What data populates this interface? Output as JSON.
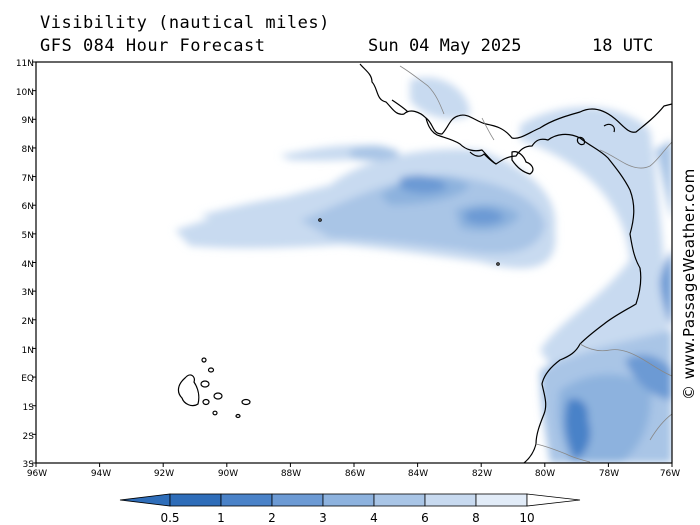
{
  "header": {
    "title": "Visibility (nautical miles)",
    "subtitle": "GFS 084 Hour Forecast",
    "date": "Sun 04 May 2025",
    "time": "18 UTC"
  },
  "credit": "© www.PassageWeather.com",
  "axes": {
    "lat_labels": [
      "11N",
      "10N",
      "9N",
      "8N",
      "7N",
      "6N",
      "5N",
      "4N",
      "3N",
      "2N",
      "1N",
      "EQ",
      "1S",
      "2S",
      "3S"
    ],
    "lon_labels": [
      "96W",
      "94W",
      "92W",
      "90W",
      "88W",
      "86W",
      "84W",
      "82W",
      "80W",
      "78W",
      "76W"
    ],
    "lon_range": [
      -96,
      -76
    ],
    "lat_range": [
      -3,
      11
    ]
  },
  "legend": {
    "labels": [
      "0.5",
      "1",
      "2",
      "3",
      "4",
      "6",
      "8",
      "10"
    ],
    "colors": [
      "#2e6db9",
      "#4a82c8",
      "#6c9ad4",
      "#8db2de",
      "#a9c5e6",
      "#c8daf0",
      "#e2ecf8",
      "#ffffff"
    ]
  }
}
